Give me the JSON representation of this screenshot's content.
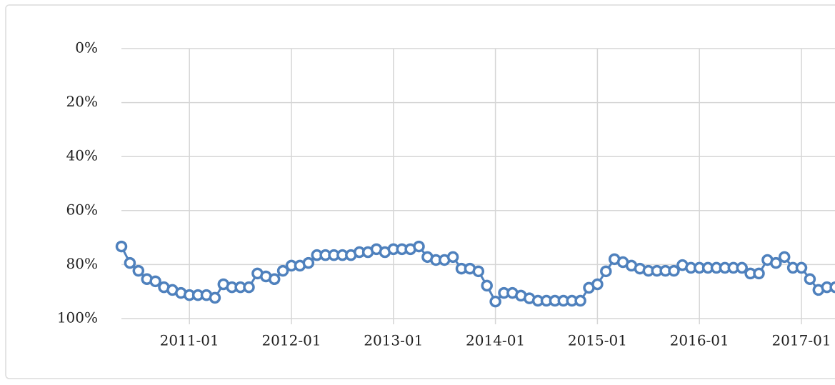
{
  "chart_data": {
    "type": "line",
    "x": [
      "2010-05",
      "2010-06",
      "2010-07",
      "2010-08",
      "2010-09",
      "2010-10",
      "2010-11",
      "2010-12",
      "2011-01",
      "2011-02",
      "2011-03",
      "2011-04",
      "2011-05",
      "2011-06",
      "2011-07",
      "2011-08",
      "2011-09",
      "2011-10",
      "2011-11",
      "2011-12",
      "2012-01",
      "2012-02",
      "2012-03",
      "2012-04",
      "2012-05",
      "2012-06",
      "2012-07",
      "2012-08",
      "2012-09",
      "2012-10",
      "2012-11",
      "2012-12",
      "2013-01",
      "2013-02",
      "2013-03",
      "2013-04",
      "2013-05",
      "2013-06",
      "2013-07",
      "2013-08",
      "2013-09",
      "2013-10",
      "2013-11",
      "2013-12",
      "2014-01",
      "2014-02",
      "2014-03",
      "2014-04",
      "2014-05",
      "2014-06",
      "2014-07",
      "2014-08",
      "2014-09",
      "2014-10",
      "2014-11",
      "2014-12",
      "2015-01",
      "2015-02",
      "2015-03",
      "2015-04",
      "2015-05",
      "2015-06",
      "2015-07",
      "2015-08",
      "2015-09",
      "2015-10",
      "2015-11",
      "2015-12",
      "2016-01",
      "2016-02",
      "2016-03",
      "2016-04",
      "2016-05",
      "2016-06",
      "2016-07",
      "2016-08",
      "2016-09",
      "2016-10",
      "2016-11",
      "2016-12",
      "2017-01",
      "2017-02",
      "2017-03",
      "2017-04",
      "2017-05"
    ],
    "series": [
      {
        "color": "#4f81bd",
        "values": [
          73.3,
          79.4,
          82.3,
          85.4,
          86.2,
          88.4,
          89.4,
          90.5,
          91.3,
          91.3,
          91.3,
          92.3,
          87.3,
          88.4,
          88.4,
          88.4,
          83.3,
          84.4,
          85.4,
          82.3,
          80.4,
          80.4,
          79.4,
          76.5,
          76.5,
          76.5,
          76.5,
          76.5,
          75.4,
          75.4,
          74.3,
          75.4,
          74.3,
          74.3,
          74.3,
          73.3,
          77.2,
          78.3,
          78.3,
          77.2,
          81.5,
          81.5,
          82.5,
          87.8,
          93.7,
          90.5,
          90.5,
          91.5,
          92.5,
          93.4,
          93.4,
          93.4,
          93.4,
          93.4,
          93.4,
          88.6,
          87.3,
          82.5,
          78.0,
          79.1,
          80.4,
          81.5,
          82.3,
          82.3,
          82.3,
          82.3,
          80.2,
          81.2,
          81.2,
          81.2,
          81.2,
          81.2,
          81.2,
          81.2,
          83.3,
          83.3,
          78.3,
          79.4,
          77.2,
          81.2,
          81.2,
          85.4,
          89.4,
          88.4,
          88.4
        ]
      }
    ],
    "xticks": [
      "2011-01",
      "2012-01",
      "2013-01",
      "2014-01",
      "2015-01",
      "2016-01",
      "2017-01"
    ],
    "ylim": [
      100,
      0
    ],
    "yticks": [
      {
        "value": 0,
        "label": "0%"
      },
      {
        "value": 20,
        "label": "20%"
      },
      {
        "value": 40,
        "label": "40%"
      },
      {
        "value": 60,
        "label": "60%"
      },
      {
        "value": 80,
        "label": "80%"
      },
      {
        "value": 100,
        "label": "100%"
      }
    ],
    "grid": true
  }
}
